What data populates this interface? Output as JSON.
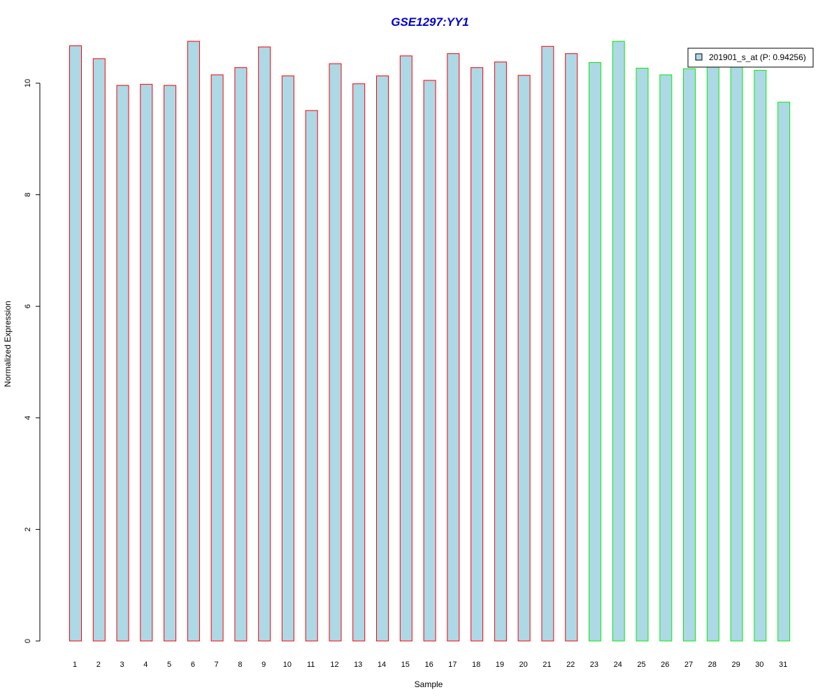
{
  "chart_data": {
    "type": "bar",
    "title": "GSE1297:YY1",
    "xlabel": "Sample",
    "ylabel": "Normalized Expression",
    "ylim": [
      0,
      10.9
    ],
    "yticks": [
      0,
      2,
      4,
      6,
      8,
      10
    ],
    "grid": false,
    "legend_position": "top-right",
    "categories": [
      "1",
      "2",
      "3",
      "4",
      "5",
      "6",
      "7",
      "8",
      "9",
      "10",
      "11",
      "12",
      "13",
      "14",
      "15",
      "16",
      "17",
      "18",
      "19",
      "20",
      "21",
      "22",
      "23",
      "24",
      "25",
      "26",
      "27",
      "28",
      "29",
      "30",
      "31"
    ],
    "series": [
      {
        "name": "201901_s_at (P: 0.94256)",
        "values": [
          10.67,
          10.44,
          9.96,
          9.98,
          9.96,
          10.75,
          10.15,
          10.28,
          10.65,
          10.13,
          9.51,
          10.35,
          9.99,
          10.13,
          10.49,
          10.05,
          10.53,
          10.28,
          10.38,
          10.14,
          10.66,
          10.53,
          10.37,
          10.75,
          10.27,
          10.15,
          10.26,
          10.3,
          10.31,
          10.23,
          9.66
        ]
      }
    ],
    "groups": [
      {
        "samples": [
          1,
          22
        ],
        "border_color": "#ff0000"
      },
      {
        "samples": [
          23,
          31
        ],
        "border_color": "#00ee00"
      }
    ]
  },
  "colors": {
    "bar_fill": "#add8e6",
    "title": "#0000cc",
    "axis": "#000000"
  }
}
